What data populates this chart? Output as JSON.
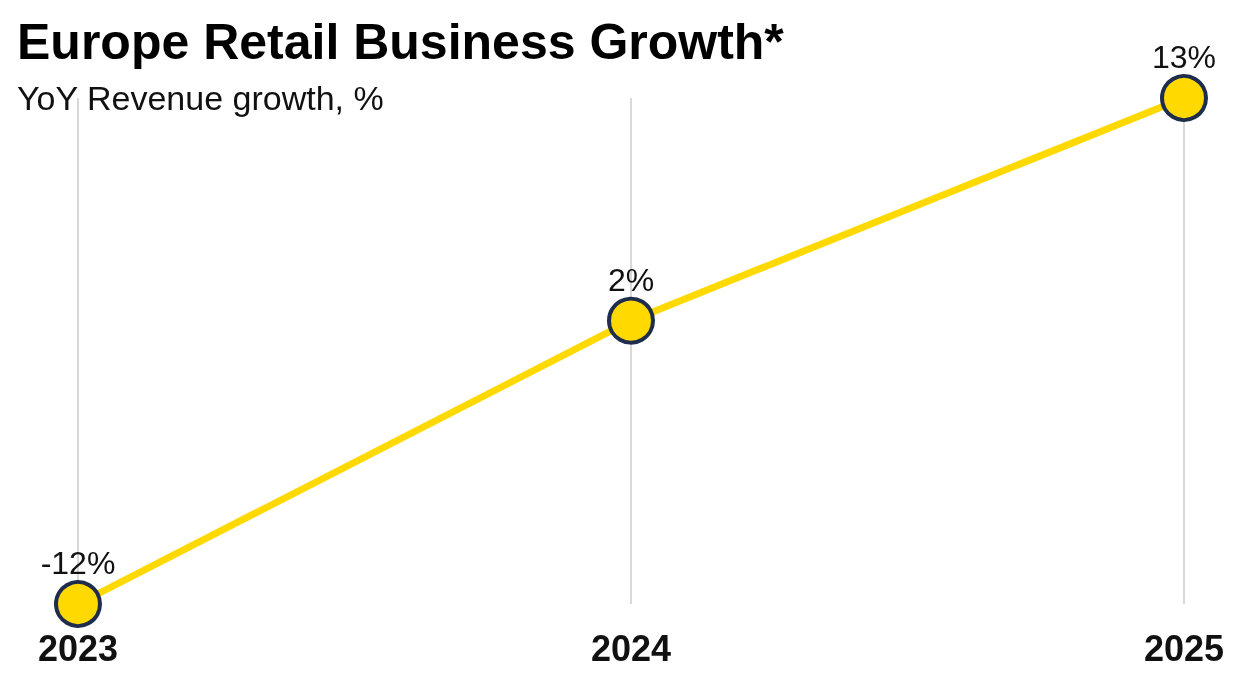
{
  "chart_data": {
    "type": "line",
    "title": "Europe Retail Business Growth*",
    "subtitle": "YoY Revenue growth, %",
    "categories": [
      "2023",
      "2024",
      "2025"
    ],
    "series": [
      {
        "color": "#ffd900",
        "values": [
          -12,
          2,
          13
        ],
        "value_labels": [
          "-12%",
          "2%",
          "13%"
        ]
      }
    ],
    "grid": "x",
    "tick_labels": "x",
    "marker": "circle"
  }
}
